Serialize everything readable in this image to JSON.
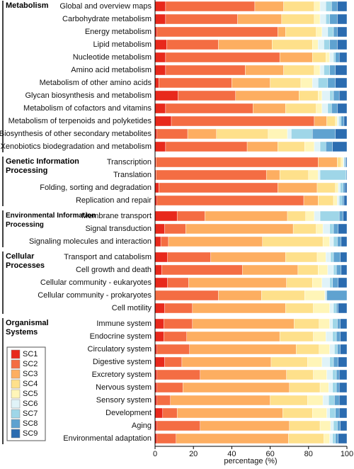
{
  "chart_data": {
    "type": "stacked-bar-horizontal",
    "xlabel": "percentage (%)",
    "xlim": [
      0,
      100
    ],
    "xticks": [
      0,
      20,
      40,
      60,
      80,
      100
    ],
    "groups": [
      {
        "name": "Metabolism",
        "categories": [
          "Global and overview maps",
          "Carbohydrate metabolism",
          "Energy metabolism",
          "Lipid metabolism",
          "Nucleotide metabolism",
          "Amino acid metabolism",
          "Metabolism of other amino acids",
          "Glycan biosynthesis and metabolism",
          "Metabolism of cofactors and vitamins",
          "Metabolism of terpenoids and polyketides",
          "Biosynthesis of other secondary metabolites",
          "Xenobiotics biodegradation and metabolism"
        ]
      },
      {
        "name": "Genetic Information Processing",
        "categories": [
          "Transcription",
          "Translation",
          "Folding, sorting and degradation",
          "Replication and repair"
        ]
      },
      {
        "name": "Environmental Information Processing",
        "categories": [
          "Membrane transport",
          "Signal transduction",
          "Signaling molecules and interaction"
        ]
      },
      {
        "name": "Cellular Processes",
        "categories": [
          "Transport and catabolism",
          "Cell growth and death",
          "Cellular community - eukaryotes",
          "Cellular community - prokaryotes",
          "Cell motility"
        ]
      },
      {
        "name": "Organismal Systems",
        "categories": [
          "Immune system",
          "Endocrine system",
          "Circulatory system",
          "Digestive system",
          "Excretory system",
          "Nervous system",
          "Sensory system",
          "Development",
          "Aging",
          "Environmental adaptation"
        ]
      }
    ],
    "series": [
      {
        "name": "SC1",
        "color": "#e8291c",
        "values": [
          5.5,
          5.5,
          1,
          6,
          5.5,
          5.5,
          2,
          12,
          5.5,
          8.5,
          1,
          5.5,
          0.5,
          0.5,
          2,
          1,
          11.5,
          5,
          3,
          6.5,
          3.5,
          6.5,
          0,
          5,
          4.5,
          4.5,
          1,
          5,
          1,
          1,
          1,
          4,
          1,
          1
        ]
      },
      {
        "name": "SC2",
        "color": "#f46d43",
        "values": [
          46.5,
          37.5,
          63,
          27,
          59.5,
          41.5,
          38,
          30,
          45.5,
          74.5,
          16,
          42.5,
          84.5,
          57.5,
          62,
          76.5,
          14.5,
          11,
          4,
          22.5,
          42,
          11,
          33,
          14.5,
          15,
          12,
          17,
          9,
          22.5,
          13.5,
          7,
          7.5,
          22.5,
          10
        ]
      },
      {
        "name": "SC3",
        "color": "#fdae61",
        "values": [
          15,
          23,
          4,
          28,
          17,
          20,
          20,
          33,
          17,
          6.5,
          15,
          16,
          10,
          7,
          20.5,
          7.5,
          43,
          56,
          49,
          39,
          29,
          51,
          22.5,
          48.5,
          53,
          48.5,
          55.5,
          46.5,
          45,
          55.5,
          52,
          55,
          46.5,
          58.5
        ]
      },
      {
        "name": "SC4",
        "color": "#fee08b",
        "values": [
          16,
          17,
          16,
          21,
          7,
          16,
          16,
          10,
          16,
          4.5,
          27,
          14,
          2,
          15,
          9.5,
          8,
          9.5,
          12,
          31.5,
          16.5,
          10.5,
          13.5,
          22.5,
          14.5,
          13,
          17.5,
          12,
          19,
          14,
          16,
          19.5,
          15.5,
          16,
          18.5
        ]
      },
      {
        "name": "SC5",
        "color": "#fff5b8",
        "values": [
          3,
          3,
          3,
          3,
          2,
          3,
          6,
          2,
          3,
          1,
          10,
          5,
          1,
          5,
          1.5,
          2,
          4.5,
          3.5,
          3.5,
          4.5,
          5,
          5,
          10.5,
          8.5,
          5.5,
          6.5,
          5.5,
          7.5,
          7,
          4.5,
          8,
          7.5,
          5.5,
          3
        ]
      },
      {
        "name": "SC6",
        "color": "#e0f3f8",
        "values": [
          3,
          3,
          3,
          3,
          2,
          2,
          3,
          4,
          3,
          1,
          2,
          3,
          0.5,
          1,
          1,
          1,
          3,
          3.5,
          2,
          2.5,
          3,
          4,
          0.5,
          2,
          1.5,
          3.5,
          2.5,
          4,
          3,
          2,
          3,
          1.5,
          1.5,
          1.5
        ]
      },
      {
        "name": "SC7",
        "color": "#9fd6e8",
        "values": [
          3,
          2,
          3,
          3,
          1,
          3,
          5,
          2,
          2,
          1,
          11,
          3,
          0.5,
          13.5,
          1.5,
          1.5,
          10,
          2,
          2,
          1.5,
          1.5,
          1.5,
          0.5,
          1.5,
          2.5,
          2,
          1.5,
          2,
          2,
          2,
          3,
          3,
          2,
          1.5
        ]
      },
      {
        "name": "SC8",
        "color": "#5fa2d0",
        "values": [
          3,
          4,
          2,
          4,
          2,
          3,
          4,
          3,
          3,
          1.5,
          12,
          3.5,
          0.5,
          0.5,
          1,
          1,
          2,
          2.5,
          2,
          3.5,
          2.5,
          3,
          10.5,
          1,
          1.5,
          2,
          1.5,
          2.5,
          1.5,
          1.5,
          2.5,
          2,
          1.5,
          1.5
        ]
      },
      {
        "name": "SC9",
        "color": "#2b6cb0",
        "values": [
          5,
          5,
          5,
          5,
          4,
          6,
          6,
          4,
          5,
          1.5,
          6,
          7.5,
          0.5,
          0,
          1,
          1.5,
          2,
          4.5,
          3,
          3.5,
          3,
          4.5,
          0,
          4.5,
          3.5,
          3.5,
          3.5,
          4.5,
          4,
          4,
          4,
          4,
          3.5,
          4.5
        ]
      }
    ]
  }
}
